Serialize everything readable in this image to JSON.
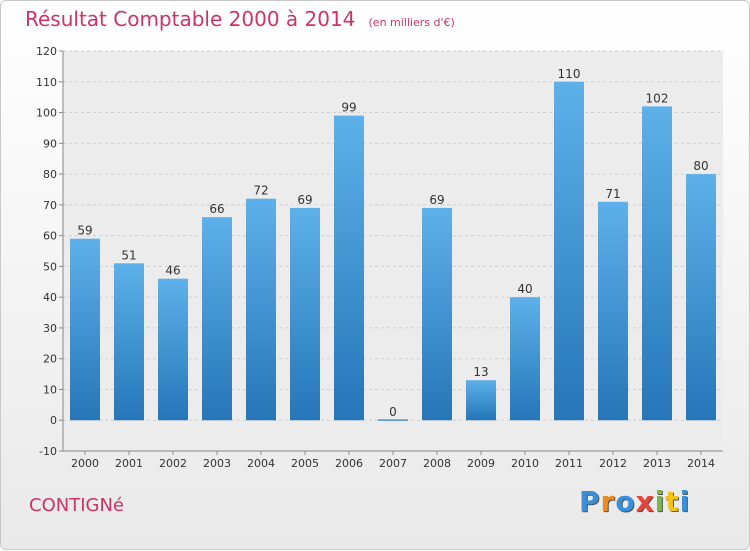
{
  "header": {
    "title": "Résultat Comptable 2000 à 2014",
    "unit": "(en milliers d'€)"
  },
  "footer": {
    "place": "CONTIGNé",
    "logo": {
      "letters": [
        "P",
        "r",
        "o",
        "x",
        "i",
        "t",
        "i"
      ],
      "colors": [
        "#3a8fd9",
        "#f08a1c",
        "#3a8fd9",
        "#e8443a",
        "#7ab648",
        "#f0c419",
        "#3a8fd9"
      ]
    }
  },
  "colors": {
    "bar": "#3d96d9",
    "bar_light": "#5eb0ea",
    "bar_dark": "#2676b8",
    "grid": "#cfcfcf",
    "accent": "#cc3366"
  },
  "chart_data": {
    "type": "bar",
    "title": "Résultat Comptable 2000 à 2014",
    "categories": [
      "2000",
      "2001",
      "2002",
      "2003",
      "2004",
      "2005",
      "2006",
      "2007",
      "2008",
      "2009",
      "2010",
      "2011",
      "2012",
      "2013",
      "2014"
    ],
    "values": [
      59,
      51,
      46,
      66,
      72,
      69,
      99,
      0,
      69,
      13,
      40,
      110,
      71,
      102,
      80
    ],
    "ylim": [
      -10,
      120
    ],
    "yticks": [
      -10,
      0,
      10,
      20,
      30,
      40,
      50,
      60,
      70,
      80,
      90,
      100,
      110,
      120
    ],
    "grid": true,
    "xlabel": "",
    "ylabel": ""
  }
}
